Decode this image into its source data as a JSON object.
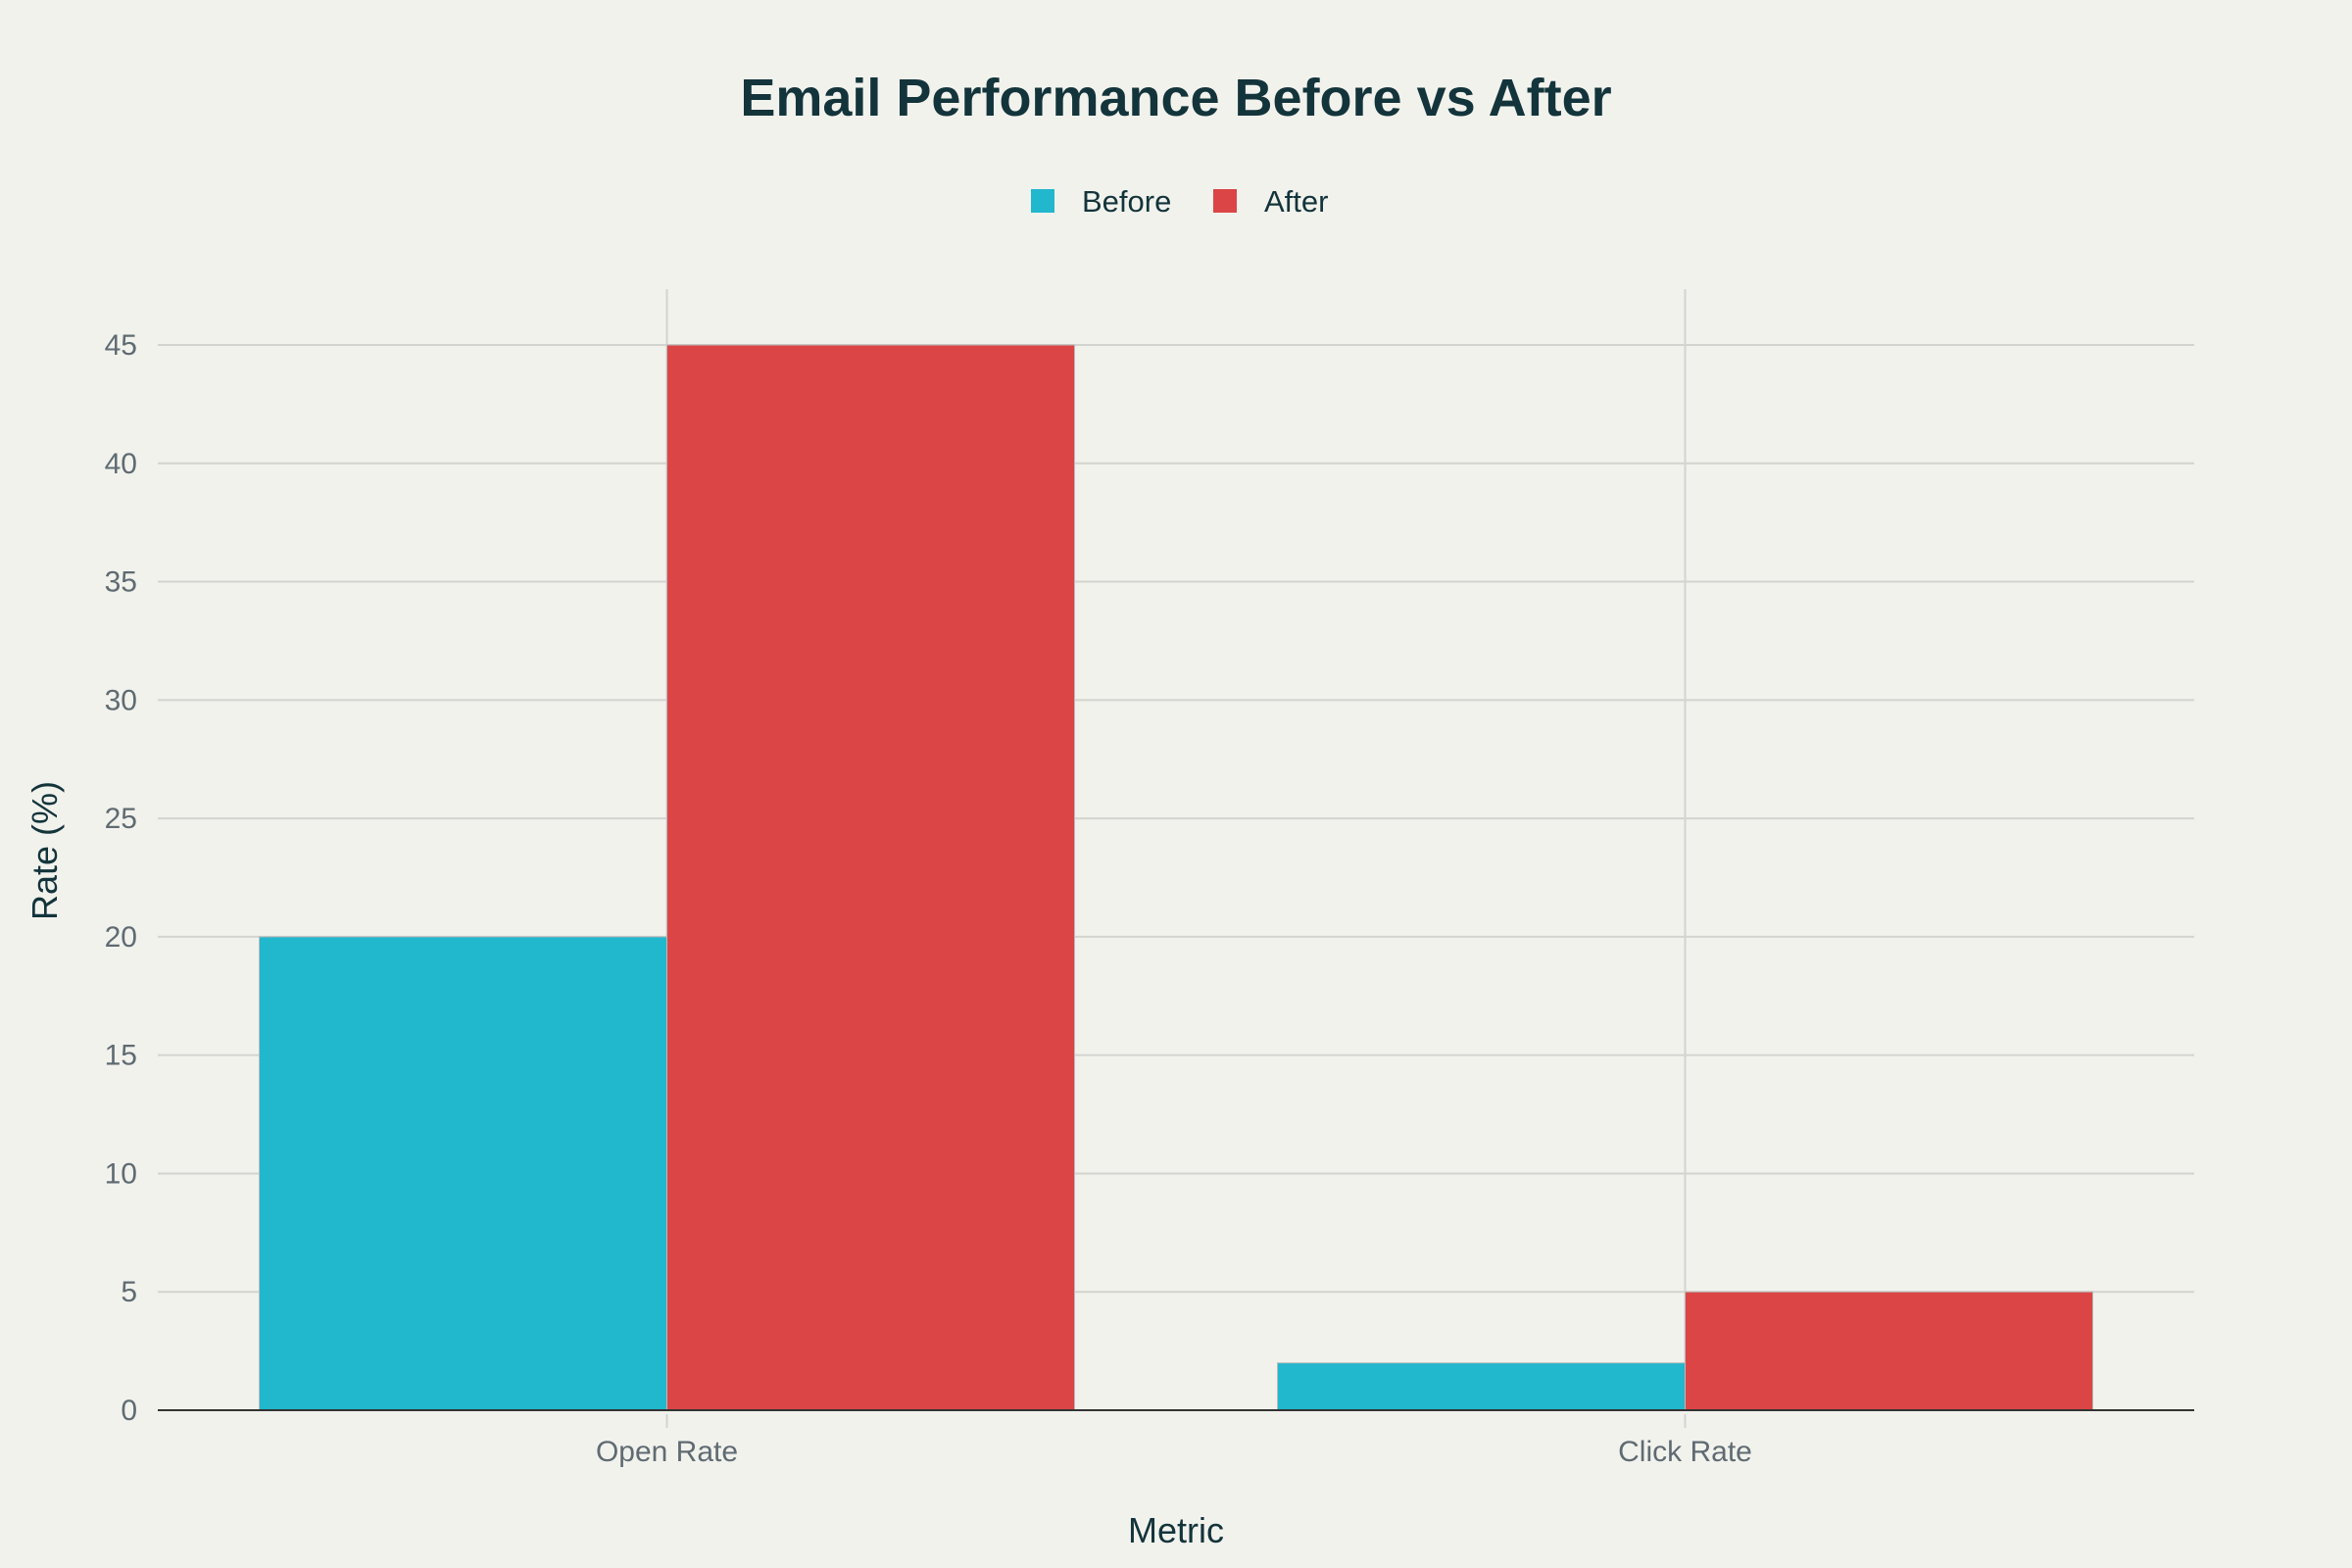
{
  "chart_data": {
    "type": "bar",
    "title": "Email Performance Before vs After",
    "categories": [
      "Open Rate",
      "Click Rate"
    ],
    "series": [
      {
        "name": "Before",
        "values": [
          20,
          2
        ],
        "color": "#21b7cd"
      },
      {
        "name": "After",
        "values": [
          45,
          5
        ],
        "color": "#db4545"
      }
    ],
    "xlabel": "Metric",
    "ylabel": "Rate (%)",
    "ylim": [
      0,
      47.4
    ],
    "yticks": [
      0,
      5,
      10,
      15,
      20,
      25,
      30,
      35,
      40,
      45
    ],
    "grid": true,
    "legend_position": "top-center"
  }
}
